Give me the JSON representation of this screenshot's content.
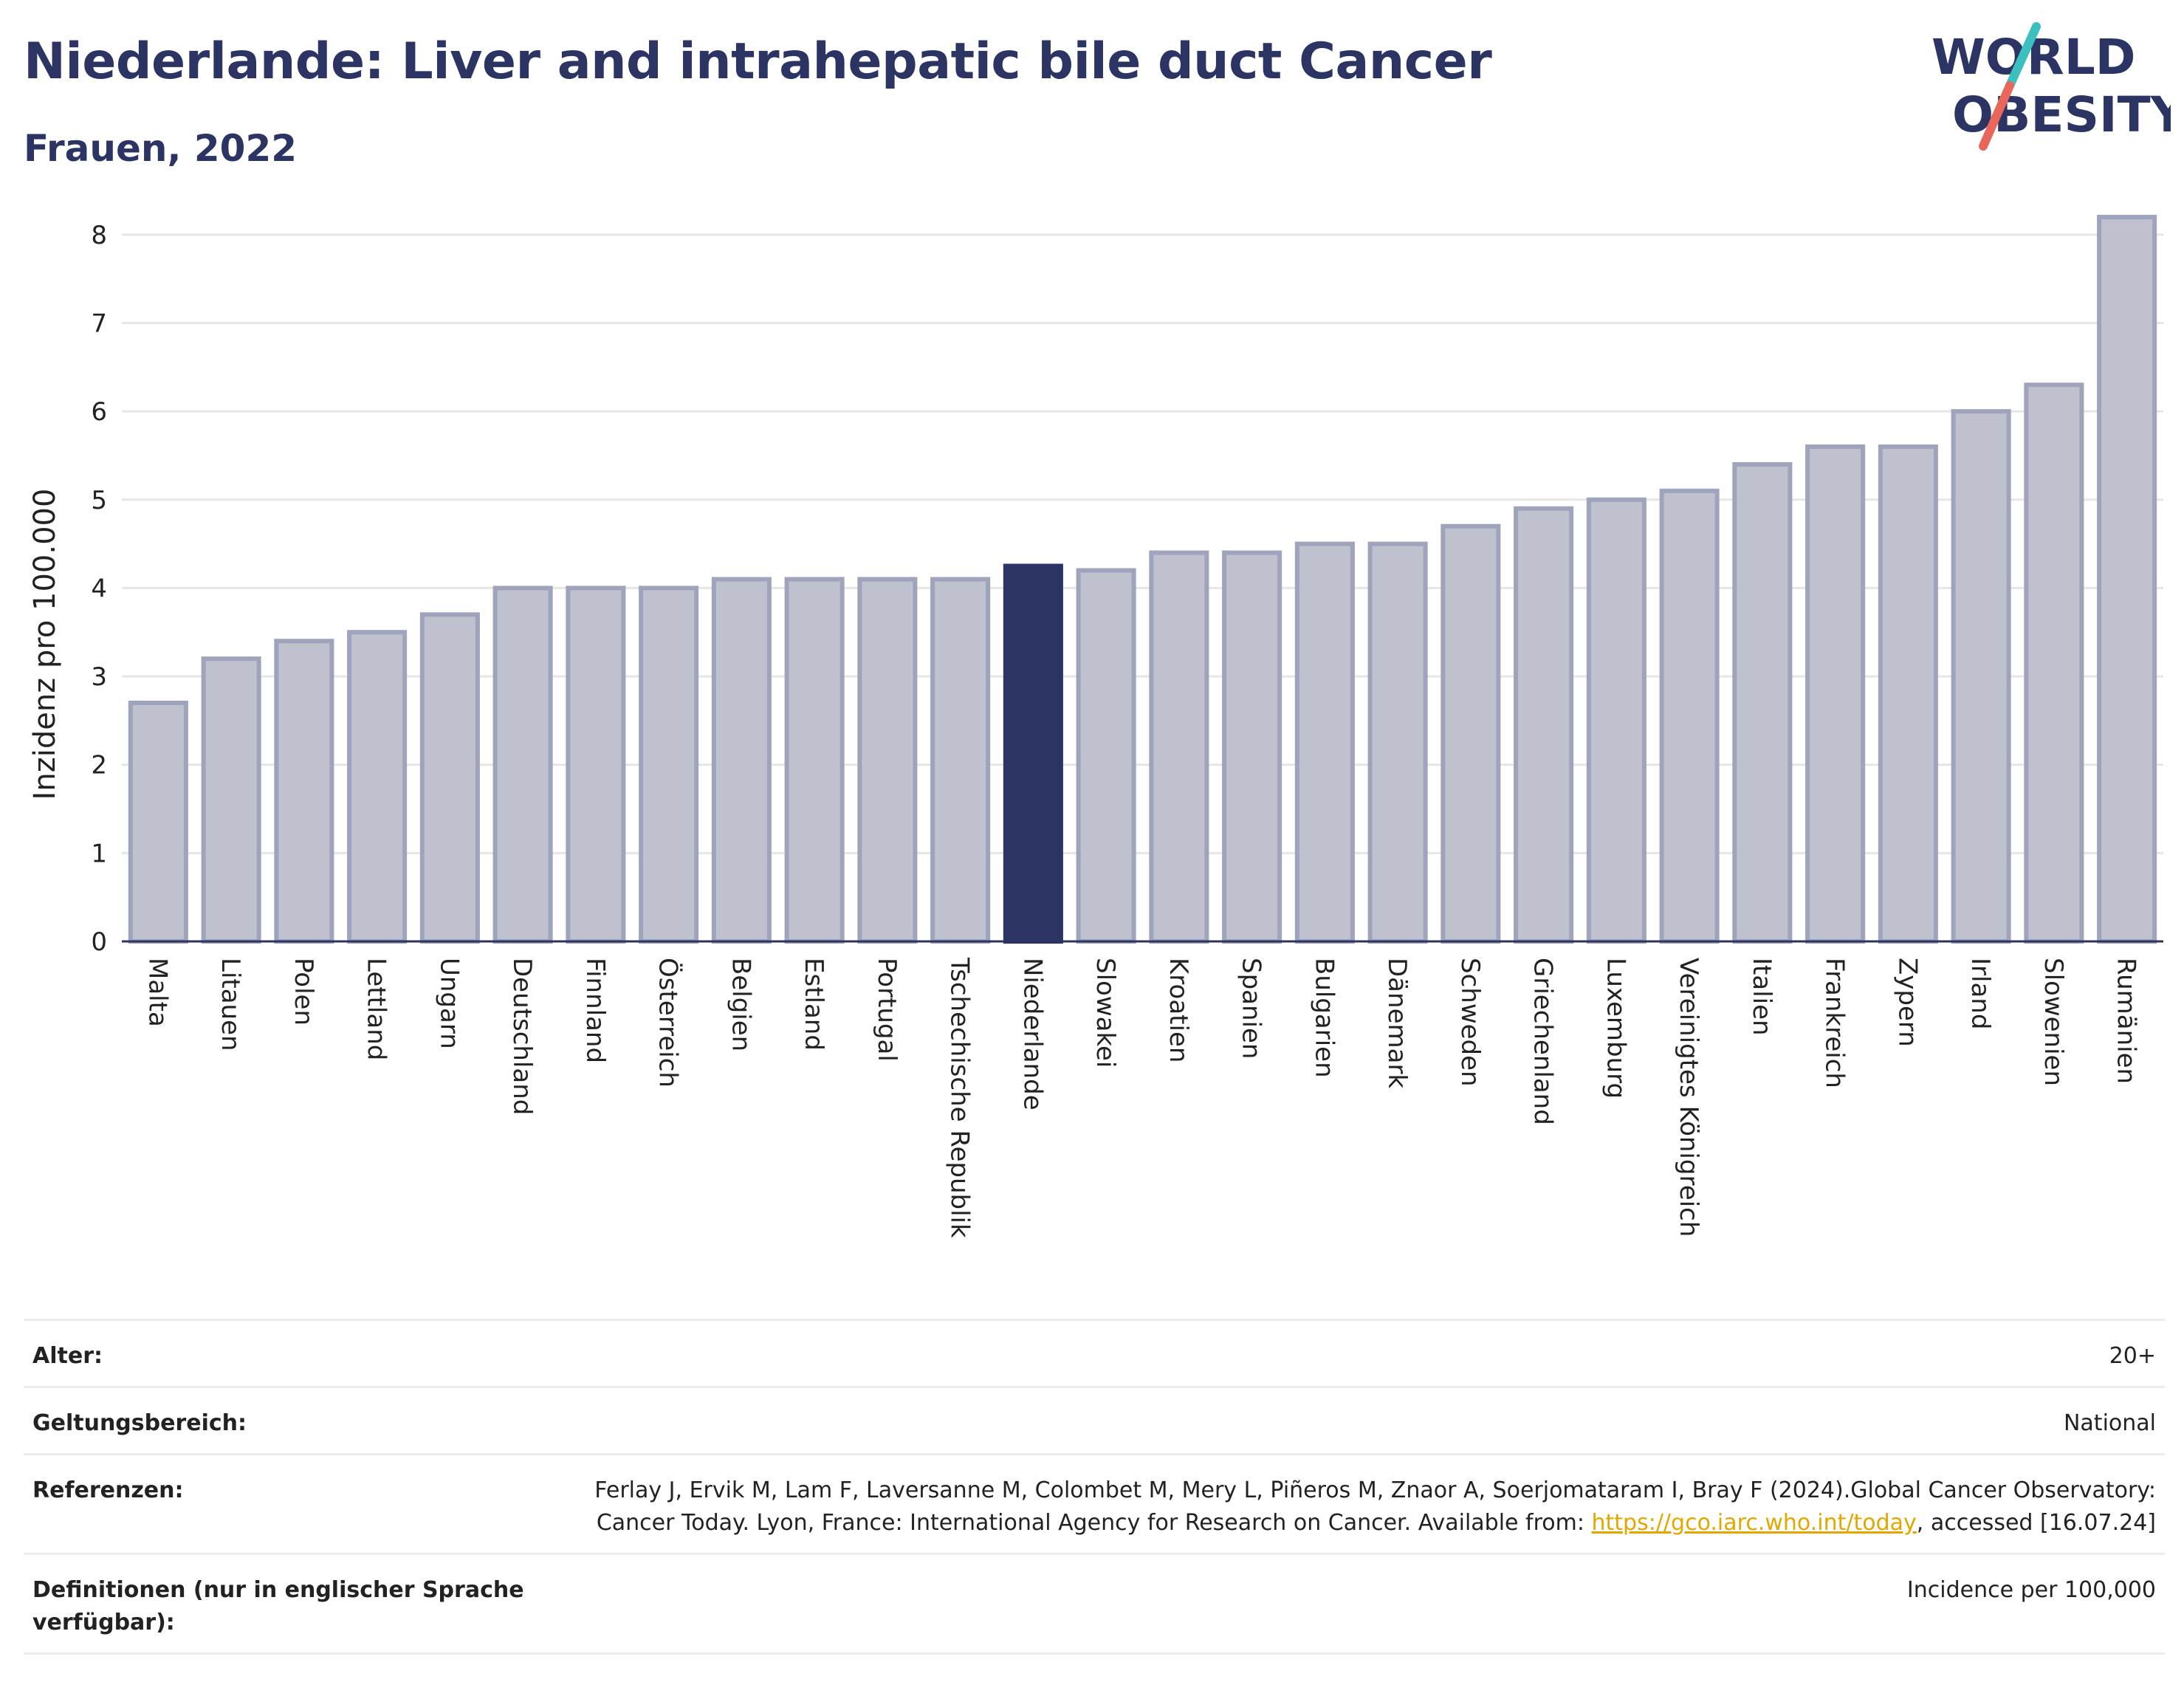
{
  "header": {
    "title": "Niederlande: Liver and intrahepatic bile duct Cancer",
    "subtitle": "Frauen, 2022"
  },
  "logo": {
    "line1": "WORLD",
    "line2": "OBESITY",
    "colors": {
      "text": "#2b3462",
      "slash_red": "#e8675a",
      "slash_teal": "#3bbfbf"
    }
  },
  "colors": {
    "bar_default": "#bfc1cf",
    "bar_default_border": "#9fa3bb",
    "bar_highlight": "#2b3462",
    "grid": "#e6e6e6",
    "axis": "#2b3462"
  },
  "chart_data": {
    "type": "bar",
    "title": "",
    "xlabel": "",
    "ylabel": "Inzidenz pro 100.000",
    "ylim": [
      0,
      8.4
    ],
    "yticks": [
      0,
      1,
      2,
      3,
      4,
      5,
      6,
      7,
      8
    ],
    "grid": true,
    "highlight": "Niederlande",
    "categories": [
      "Malta",
      "Litauen",
      "Polen",
      "Lettland",
      "Ungarn",
      "Deutschland",
      "Finnland",
      "Österreich",
      "Belgien",
      "Estland",
      "Portugal",
      "Tschechische Republik",
      "Niederlande",
      "Slowakei",
      "Kroatien",
      "Spanien",
      "Bulgarien",
      "Dänemark",
      "Schweden",
      "Griechenland",
      "Luxemburg",
      "Vereinigtes Königreich",
      "Italien",
      "Frankreich",
      "Zypern",
      "Irland",
      "Slowenien",
      "Rumänien"
    ],
    "values": [
      2.7,
      3.2,
      3.4,
      3.5,
      3.7,
      4.0,
      4.0,
      4.0,
      4.1,
      4.1,
      4.1,
      4.1,
      4.25,
      4.2,
      4.4,
      4.4,
      4.5,
      4.5,
      4.7,
      4.9,
      5.0,
      5.1,
      5.4,
      5.6,
      5.6,
      6.0,
      6.3,
      8.2
    ]
  },
  "meta": {
    "age_label": "Alter:",
    "age_value": "20+",
    "scope_label": "Geltungsbereich:",
    "scope_value": "National",
    "ref_label": "Referenzen:",
    "ref_text_1": "Ferlay J, Ervik M, Lam F, Laversanne M, Colombet M, Mery L, Piñeros M, Znaor A, Soerjomataram I, Bray F (2024).Global Cancer Observatory: Cancer Today. Lyon, France: International Agency for Research on Cancer. Available from: ",
    "ref_link": "https://gco.iarc.who.int/today",
    "ref_text_2": ", accessed [16.07.24]",
    "def_label": "Definitionen (nur in englischer Sprache verfügbar):",
    "def_value": "Incidence per 100,000"
  }
}
